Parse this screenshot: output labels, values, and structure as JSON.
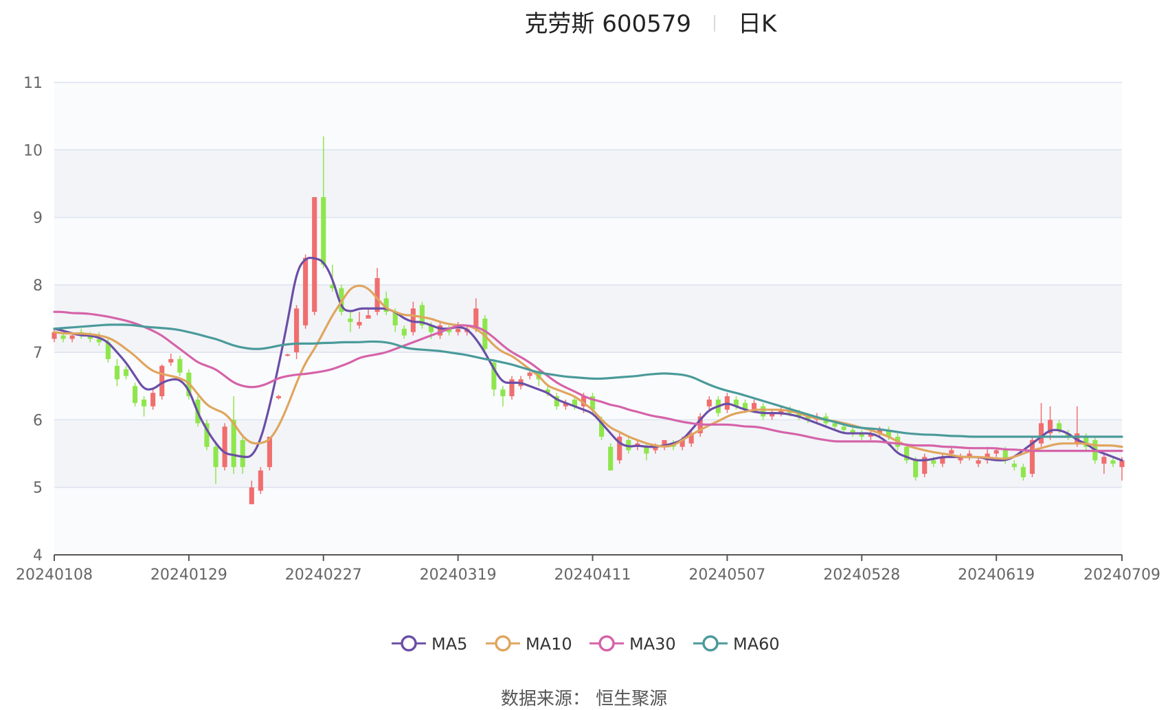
{
  "title": {
    "stock": "克劳斯 600579",
    "period": "日K"
  },
  "source": "数据来源： 恒生聚源",
  "colors": {
    "up": "#f06e6e",
    "down": "#8ee64c",
    "MA5": "#6a4ea6",
    "MA10": "#e0a55e",
    "MA30": "#d563a9",
    "MA60": "#4a9a9a",
    "band": "#f2f4f8",
    "grid": "#dce2ef"
  },
  "chart_data": {
    "type": "candlestick",
    "xlabel": "",
    "ylabel": "",
    "ylim": [
      4,
      11
    ],
    "y_ticks": [
      4,
      5,
      6,
      7,
      8,
      9,
      10,
      11
    ],
    "x_tick_labels": [
      "20240108",
      "20240129",
      "20240227",
      "20240319",
      "20240411",
      "20240507",
      "20240528",
      "20240619",
      "20240709"
    ],
    "x_tick_index": [
      0,
      15,
      30,
      45,
      60,
      75,
      90,
      105,
      119
    ],
    "legend": [
      "MA5",
      "MA10",
      "MA30",
      "MA60"
    ],
    "legend_position": "bottom",
    "candles_ohlc": [
      [
        7.2,
        7.3,
        7.15,
        7.35
      ],
      [
        7.25,
        7.2,
        7.15,
        7.3
      ],
      [
        7.2,
        7.25,
        7.15,
        7.3
      ],
      [
        7.3,
        7.25,
        7.2,
        7.35
      ],
      [
        7.25,
        7.2,
        7.15,
        7.3
      ],
      [
        7.2,
        7.15,
        7.1,
        7.3
      ],
      [
        7.15,
        6.9,
        6.85,
        7.2
      ],
      [
        6.8,
        6.6,
        6.5,
        6.9
      ],
      [
        6.75,
        6.65,
        6.6,
        6.8
      ],
      [
        6.5,
        6.25,
        6.2,
        6.55
      ],
      [
        6.3,
        6.2,
        6.05,
        6.35
      ],
      [
        6.2,
        6.4,
        6.15,
        6.45
      ],
      [
        6.35,
        6.8,
        6.3,
        6.82
      ],
      [
        6.85,
        6.9,
        6.8,
        6.98
      ],
      [
        6.9,
        6.7,
        6.65,
        6.95
      ],
      [
        6.7,
        6.35,
        6.3,
        6.75
      ],
      [
        6.3,
        5.95,
        5.9,
        6.35
      ],
      [
        5.95,
        5.6,
        5.55,
        6.0
      ],
      [
        5.6,
        5.3,
        5.05,
        5.65
      ],
      [
        5.3,
        5.9,
        5.25,
        5.95
      ],
      [
        6.0,
        5.3,
        5.2,
        6.35
      ],
      [
        5.7,
        5.3,
        5.2,
        5.75
      ],
      [
        4.75,
        5.0,
        4.75,
        5.1
      ],
      [
        4.95,
        5.25,
        4.9,
        5.3
      ],
      [
        5.3,
        5.75,
        5.25,
        5.75
      ],
      [
        6.32,
        6.35,
        6.3,
        6.37
      ],
      [
        6.95,
        6.97,
        6.94,
        6.98
      ],
      [
        7.0,
        7.65,
        6.9,
        7.7
      ],
      [
        7.4,
        8.4,
        7.35,
        8.45
      ],
      [
        7.6,
        9.3,
        7.55,
        9.3
      ],
      [
        9.3,
        8.3,
        8.25,
        10.2
      ],
      [
        8.0,
        7.95,
        7.9,
        8.3
      ],
      [
        7.95,
        7.6,
        7.55,
        8.0
      ],
      [
        7.5,
        7.45,
        7.3,
        7.6
      ],
      [
        7.4,
        7.45,
        7.35,
        7.6
      ],
      [
        7.5,
        7.55,
        7.5,
        7.65
      ],
      [
        7.6,
        8.1,
        7.55,
        8.25
      ],
      [
        7.8,
        7.6,
        7.55,
        7.9
      ],
      [
        7.6,
        7.4,
        7.3,
        7.65
      ],
      [
        7.35,
        7.25,
        7.2,
        7.4
      ],
      [
        7.3,
        7.65,
        7.25,
        7.75
      ],
      [
        7.7,
        7.4,
        7.35,
        7.75
      ],
      [
        7.4,
        7.3,
        7.2,
        7.45
      ],
      [
        7.25,
        7.4,
        7.2,
        7.45
      ],
      [
        7.35,
        7.3,
        7.25,
        7.4
      ],
      [
        7.3,
        7.35,
        7.25,
        7.45
      ],
      [
        7.3,
        7.35,
        7.25,
        7.4
      ],
      [
        7.35,
        7.65,
        7.3,
        7.8
      ],
      [
        7.5,
        7.05,
        7.0,
        7.55
      ],
      [
        6.85,
        6.45,
        6.35,
        6.9
      ],
      [
        6.45,
        6.35,
        6.2,
        6.5
      ],
      [
        6.35,
        6.6,
        6.3,
        6.65
      ],
      [
        6.5,
        6.6,
        6.45,
        6.65
      ],
      [
        6.65,
        6.7,
        6.6,
        6.72
      ],
      [
        6.7,
        6.6,
        6.5,
        6.75
      ],
      [
        6.45,
        6.4,
        6.35,
        6.5
      ],
      [
        6.35,
        6.2,
        6.15,
        6.4
      ],
      [
        6.2,
        6.25,
        6.15,
        6.3
      ],
      [
        6.3,
        6.2,
        6.15,
        6.35
      ],
      [
        6.2,
        6.35,
        6.1,
        6.4
      ],
      [
        6.35,
        6.15,
        6.1,
        6.4
      ],
      [
        6.0,
        5.75,
        5.7,
        6.05
      ],
      [
        5.6,
        5.25,
        5.25,
        5.65
      ],
      [
        5.4,
        5.75,
        5.35,
        5.8
      ],
      [
        5.7,
        5.55,
        5.5,
        5.75
      ],
      [
        5.6,
        5.65,
        5.55,
        5.7
      ],
      [
        5.6,
        5.5,
        5.4,
        5.65
      ],
      [
        5.55,
        5.6,
        5.5,
        5.65
      ],
      [
        5.6,
        5.7,
        5.55,
        5.7
      ],
      [
        5.65,
        5.6,
        5.55,
        5.7
      ],
      [
        5.6,
        5.7,
        5.55,
        5.75
      ],
      [
        5.65,
        5.8,
        5.6,
        5.85
      ],
      [
        5.8,
        6.05,
        5.75,
        6.1
      ],
      [
        6.2,
        6.3,
        6.15,
        6.35
      ],
      [
        6.3,
        6.1,
        6.05,
        6.35
      ],
      [
        6.15,
        6.35,
        6.1,
        6.4
      ],
      [
        6.3,
        6.2,
        6.15,
        6.35
      ],
      [
        6.25,
        6.15,
        6.1,
        6.3
      ],
      [
        6.15,
        6.25,
        6.1,
        6.3
      ],
      [
        6.2,
        6.05,
        6.0,
        6.25
      ],
      [
        6.05,
        6.1,
        6.0,
        6.15
      ],
      [
        6.1,
        6.15,
        6.05,
        6.2
      ],
      [
        6.15,
        6.1,
        6.05,
        6.2
      ],
      [
        6.1,
        6.05,
        6.0,
        6.15
      ],
      [
        6.05,
        6.0,
        5.95,
        6.1
      ],
      [
        6.0,
        6.05,
        5.95,
        6.1
      ],
      [
        6.05,
        5.95,
        5.9,
        6.1
      ],
      [
        5.95,
        5.9,
        5.85,
        6.0
      ],
      [
        5.9,
        5.85,
        5.8,
        5.95
      ],
      [
        5.85,
        5.8,
        5.75,
        5.9
      ],
      [
        5.8,
        5.75,
        5.7,
        5.85
      ],
      [
        5.75,
        5.8,
        5.7,
        5.85
      ],
      [
        5.8,
        5.85,
        5.75,
        5.9
      ],
      [
        5.85,
        5.75,
        5.7,
        5.9
      ],
      [
        5.75,
        5.6,
        5.55,
        5.8
      ],
      [
        5.6,
        5.4,
        5.35,
        5.65
      ],
      [
        5.4,
        5.15,
        5.1,
        5.45
      ],
      [
        5.2,
        5.45,
        5.15,
        5.5
      ],
      [
        5.4,
        5.35,
        5.3,
        5.45
      ],
      [
        5.35,
        5.45,
        5.3,
        5.5
      ],
      [
        5.5,
        5.55,
        5.45,
        5.6
      ],
      [
        5.4,
        5.45,
        5.35,
        5.5
      ],
      [
        5.45,
        5.5,
        5.4,
        5.55
      ],
      [
        5.35,
        5.4,
        5.3,
        5.45
      ],
      [
        5.4,
        5.5,
        5.35,
        5.6
      ],
      [
        5.5,
        5.55,
        5.45,
        5.58
      ],
      [
        5.55,
        5.4,
        5.35,
        5.6
      ],
      [
        5.35,
        5.3,
        5.25,
        5.4
      ],
      [
        5.3,
        5.15,
        5.1,
        5.35
      ],
      [
        5.2,
        5.7,
        5.15,
        5.75
      ],
      [
        5.65,
        5.95,
        5.6,
        6.25
      ],
      [
        5.8,
        6.0,
        5.7,
        6.2
      ],
      [
        5.95,
        5.85,
        5.8,
        6.0
      ],
      [
        5.8,
        5.75,
        5.7,
        5.85
      ],
      [
        5.65,
        5.8,
        5.6,
        6.2
      ],
      [
        5.75,
        5.6,
        5.55,
        5.8
      ],
      [
        5.7,
        5.4,
        5.35,
        5.75
      ],
      [
        5.35,
        5.45,
        5.2,
        5.5
      ],
      [
        5.4,
        5.35,
        5.3,
        5.45
      ],
      [
        5.3,
        5.4,
        5.1,
        5.45
      ]
    ],
    "series": [
      {
        "name": "MA5",
        "values": [
          7.35,
          7.32,
          7.28,
          7.25,
          7.25,
          7.22,
          7.15,
          7.0,
          6.85,
          6.65,
          6.45,
          6.45,
          6.55,
          6.6,
          6.6,
          6.45,
          6.1,
          5.85,
          5.65,
          5.5,
          5.48,
          5.45,
          5.45,
          5.7,
          6.2,
          6.8,
          7.45,
          8.2,
          8.4,
          8.4,
          8.35,
          8.1,
          7.65,
          7.6,
          7.65,
          7.65,
          7.65,
          7.65,
          7.6,
          7.5,
          7.45,
          7.45,
          7.4,
          7.35,
          7.35,
          7.38,
          7.35,
          7.2,
          7.0,
          6.75,
          6.55,
          6.55,
          6.55,
          6.5,
          6.45,
          6.4,
          6.3,
          6.25,
          6.2,
          6.15,
          6.1,
          5.95,
          5.8,
          5.65,
          5.6,
          5.62,
          5.6,
          5.6,
          5.62,
          5.65,
          5.7,
          5.85,
          6.0,
          6.15,
          6.2,
          6.25,
          6.2,
          6.15,
          6.12,
          6.1,
          6.1,
          6.1,
          6.08,
          6.05,
          6.0,
          5.95,
          5.9,
          5.85,
          5.8,
          5.8,
          5.8,
          5.8,
          5.75,
          5.65,
          5.5,
          5.45,
          5.4,
          5.4,
          5.42,
          5.45,
          5.45,
          5.45,
          5.45,
          5.45,
          5.42,
          5.4,
          5.4,
          5.45,
          5.55,
          5.65,
          5.75,
          5.85,
          5.85,
          5.8,
          5.7,
          5.65,
          5.55,
          5.5,
          5.45,
          5.4
        ]
      },
      {
        "name": "MA10",
        "values": [
          7.3,
          7.28,
          7.28,
          7.28,
          7.27,
          7.25,
          7.22,
          7.15,
          7.05,
          6.95,
          6.82,
          6.72,
          6.68,
          6.65,
          6.62,
          6.55,
          6.38,
          6.22,
          6.15,
          6.1,
          5.95,
          5.75,
          5.65,
          5.65,
          5.7,
          5.9,
          6.2,
          6.55,
          6.85,
          7.05,
          7.3,
          7.55,
          7.75,
          7.95,
          8.0,
          7.95,
          7.8,
          7.65,
          7.6,
          7.55,
          7.55,
          7.52,
          7.5,
          7.45,
          7.42,
          7.4,
          7.4,
          7.35,
          7.25,
          7.1,
          7.0,
          6.95,
          6.85,
          6.75,
          6.65,
          6.5,
          6.45,
          6.4,
          6.35,
          6.25,
          6.15,
          6.0,
          5.88,
          5.82,
          5.75,
          5.7,
          5.65,
          5.62,
          5.6,
          5.62,
          5.7,
          5.78,
          5.85,
          5.92,
          5.98,
          6.05,
          6.1,
          6.12,
          6.15,
          6.15,
          6.15,
          6.15,
          6.13,
          6.1,
          6.05,
          6.02,
          6.0,
          5.98,
          5.95,
          5.92,
          5.88,
          5.85,
          5.8,
          5.75,
          5.68,
          5.62,
          5.58,
          5.55,
          5.52,
          5.5,
          5.48,
          5.45,
          5.45,
          5.45,
          5.44,
          5.43,
          5.42,
          5.45,
          5.5,
          5.55,
          5.58,
          5.62,
          5.65,
          5.65,
          5.65,
          5.65,
          5.62,
          5.62,
          5.62,
          5.6
        ]
      },
      {
        "name": "MA30",
        "values": [
          7.6,
          7.6,
          7.58,
          7.58,
          7.57,
          7.55,
          7.53,
          7.5,
          7.47,
          7.43,
          7.38,
          7.32,
          7.25,
          7.15,
          7.05,
          6.95,
          6.85,
          6.8,
          6.75,
          6.65,
          6.55,
          6.5,
          6.48,
          6.5,
          6.55,
          6.62,
          6.65,
          6.67,
          6.68,
          6.7,
          6.72,
          6.75,
          6.8,
          6.85,
          6.92,
          6.95,
          6.97,
          7.0,
          7.05,
          7.1,
          7.15,
          7.2,
          7.25,
          7.3,
          7.35,
          7.4,
          7.4,
          7.38,
          7.32,
          7.22,
          7.1,
          7.0,
          6.93,
          6.85,
          6.75,
          6.65,
          6.55,
          6.48,
          6.42,
          6.35,
          6.3,
          6.27,
          6.22,
          6.2,
          6.15,
          6.12,
          6.08,
          6.05,
          6.03,
          6.0,
          5.97,
          5.95,
          5.93,
          5.93,
          5.93,
          5.93,
          5.92,
          5.9,
          5.9,
          5.88,
          5.85,
          5.82,
          5.8,
          5.78,
          5.75,
          5.72,
          5.7,
          5.68,
          5.68,
          5.68,
          5.68,
          5.68,
          5.68,
          5.66,
          5.65,
          5.63,
          5.62,
          5.62,
          5.62,
          5.6,
          5.6,
          5.59,
          5.58,
          5.58,
          5.58,
          5.58,
          5.56,
          5.56,
          5.55,
          5.54,
          5.54,
          5.54,
          5.54,
          5.54,
          5.54,
          5.54,
          5.54,
          5.54,
          5.54,
          5.54
        ]
      },
      {
        "name": "MA60",
        "values": [
          7.35,
          7.36,
          7.37,
          7.38,
          7.39,
          7.4,
          7.41,
          7.41,
          7.41,
          7.4,
          7.38,
          7.37,
          7.36,
          7.35,
          7.33,
          7.3,
          7.27,
          7.23,
          7.2,
          7.15,
          7.1,
          7.07,
          7.05,
          7.05,
          7.07,
          7.1,
          7.12,
          7.13,
          7.13,
          7.13,
          7.14,
          7.14,
          7.15,
          7.15,
          7.15,
          7.16,
          7.16,
          7.15,
          7.12,
          7.07,
          7.05,
          7.04,
          7.03,
          7.02,
          7.0,
          6.98,
          6.96,
          6.93,
          6.9,
          6.88,
          6.85,
          6.82,
          6.78,
          6.74,
          6.7,
          6.68,
          6.66,
          6.64,
          6.63,
          6.62,
          6.61,
          6.61,
          6.62,
          6.63,
          6.64,
          6.65,
          6.67,
          6.68,
          6.69,
          6.68,
          6.67,
          6.64,
          6.58,
          6.52,
          6.47,
          6.43,
          6.4,
          6.36,
          6.32,
          6.28,
          6.24,
          6.2,
          6.16,
          6.12,
          6.08,
          6.04,
          6.0,
          5.97,
          5.93,
          5.9,
          5.88,
          5.87,
          5.86,
          5.84,
          5.82,
          5.8,
          5.79,
          5.78,
          5.78,
          5.77,
          5.76,
          5.76,
          5.75,
          5.75,
          5.75,
          5.75,
          5.75,
          5.75,
          5.75,
          5.75,
          5.75,
          5.75,
          5.75,
          5.75,
          5.75,
          5.75,
          5.75,
          5.75,
          5.75,
          5.75
        ]
      }
    ]
  }
}
